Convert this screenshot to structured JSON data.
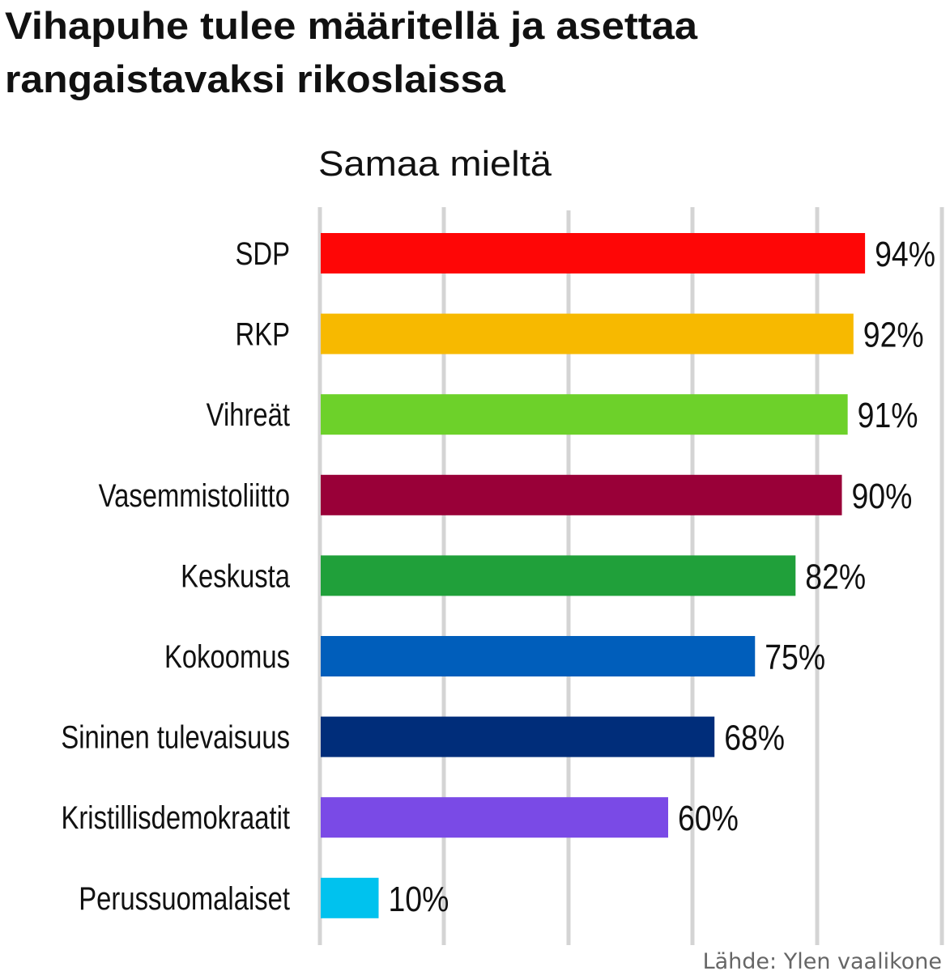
{
  "chart_data": {
    "type": "bar",
    "orientation": "horizontal",
    "title": "Vihapuhe tulee määritellä ja asettaa rangaistavaksi rikoslaissa",
    "title_lines": [
      "Vihapuhe tulee määritellä ja asettaa",
      "rangaistavaksi rikoslaissa"
    ],
    "subtitle": "Samaa mieltä",
    "source": "Lähde: Ylen vaalikone",
    "categories": [
      "SDP",
      "RKP",
      "Vihreät",
      "Vasemmistoliitto",
      "Keskusta",
      "Kokoomus",
      "Sininen tulevaisuus",
      "Kristillisdemokraatit",
      "Perussuomalaiset"
    ],
    "values": [
      94,
      92,
      91,
      90,
      82,
      75,
      68,
      60,
      10
    ],
    "value_labels": [
      "94%",
      "92%",
      "91%",
      "90%",
      "82%",
      "75%",
      "68%",
      "60%",
      "10%"
    ],
    "colors": [
      "#fe0606",
      "#f7b900",
      "#6dd12a",
      "#990038",
      "#20a03a",
      "#005ebb",
      "#002d7a",
      "#7a4ae6",
      "#00c2ee"
    ],
    "unit": "%",
    "grid": true,
    "legend": "none"
  }
}
